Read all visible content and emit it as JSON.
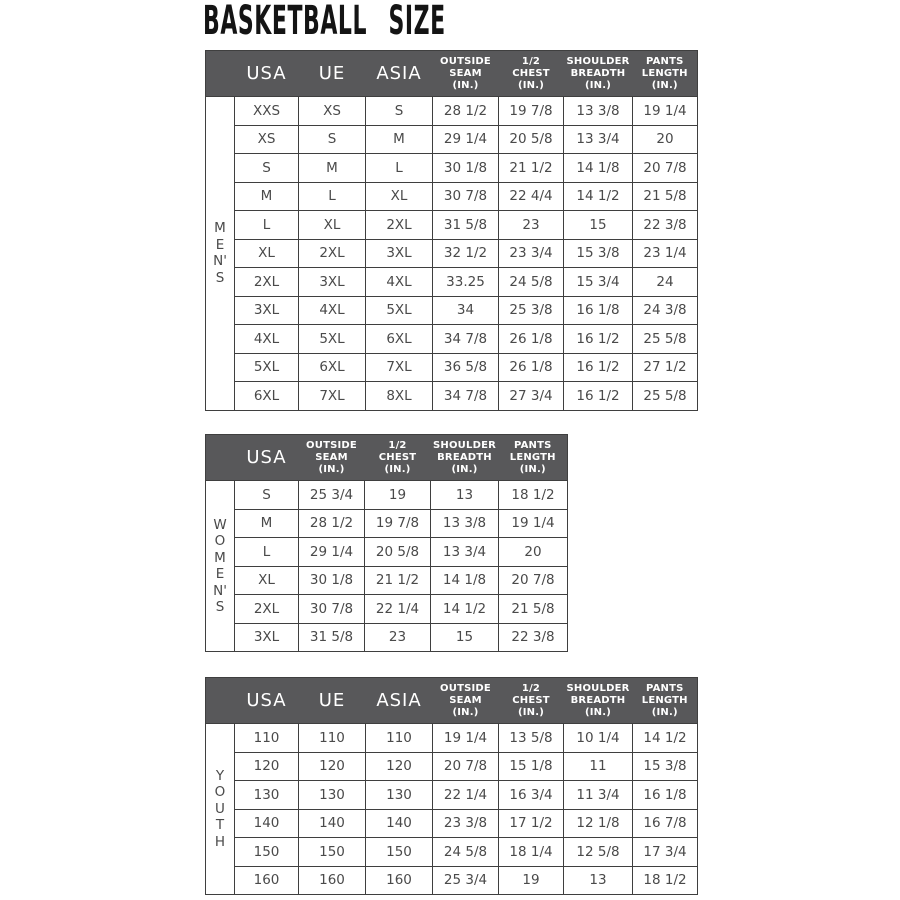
{
  "page": {
    "title": "BASKETBALL SIZE"
  },
  "colors": {
    "background": "#ffffff",
    "title_text": "#141414",
    "header_bg": "#58585a",
    "header_text": "#ffffff",
    "body_text": "#4a4a4a",
    "border": "#3f3f3f"
  },
  "tables": [
    {
      "id": "mens",
      "group_label": "MEN'S",
      "group_label_stacked": "M\nE\nN'\nS",
      "columns": [
        {
          "label": "USA",
          "style": "large"
        },
        {
          "label": "UE",
          "style": "large"
        },
        {
          "label": "ASIA",
          "style": "large"
        },
        {
          "label": "OUTSIDE\nSEAM\n(IN.)",
          "style": "small"
        },
        {
          "label": "1/2\nCHEST\n(IN.)",
          "style": "small"
        },
        {
          "label": "SHOULDER\nBREADTH\n(IN.)",
          "style": "small"
        },
        {
          "label": "PANTS\nLENGTH\n(IN.)",
          "style": "small"
        }
      ],
      "rows": [
        [
          "XXS",
          "XS",
          "S",
          "28 1/2",
          "19 7/8",
          "13 3/8",
          "19 1/4"
        ],
        [
          "XS",
          "S",
          "M",
          "29 1/4",
          "20 5/8",
          "13 3/4",
          "20"
        ],
        [
          "S",
          "M",
          "L",
          "30 1/8",
          "21 1/2",
          "14 1/8",
          "20 7/8"
        ],
        [
          "M",
          "L",
          "XL",
          "30 7/8",
          "22 4/4",
          "14 1/2",
          "21 5/8"
        ],
        [
          "L",
          "XL",
          "2XL",
          "31 5/8",
          "23",
          "15",
          "22 3/8"
        ],
        [
          "XL",
          "2XL",
          "3XL",
          "32 1/2",
          "23 3/4",
          "15 3/8",
          "23 1/4"
        ],
        [
          "2XL",
          "3XL",
          "4XL",
          "33.25",
          "24 5/8",
          "15 3/4",
          "24"
        ],
        [
          "3XL",
          "4XL",
          "5XL",
          "34",
          "25 3/8",
          "16 1/8",
          "24 3/8"
        ],
        [
          "4XL",
          "5XL",
          "6XL",
          "34 7/8",
          "26 1/8",
          "16 1/2",
          "25 5/8"
        ],
        [
          "5XL",
          "6XL",
          "7XL",
          "36 5/8",
          "26 1/8",
          "16 1/2",
          "27 1/2"
        ],
        [
          "6XL",
          "7XL",
          "8XL",
          "34 7/8",
          "27 3/4",
          "16 1/2",
          "25 5/8"
        ]
      ]
    },
    {
      "id": "womens",
      "group_label": "WOMEN'S",
      "group_label_stacked": "W\nO\nM\nE\nN'\nS",
      "columns": [
        {
          "label": "USA",
          "style": "large"
        },
        {
          "label": "OUTSIDE\nSEAM\n(IN.)",
          "style": "small"
        },
        {
          "label": "1/2\nCHEST\n(IN.)",
          "style": "small"
        },
        {
          "label": "SHOULDER\nBREADTH\n(IN.)",
          "style": "small"
        },
        {
          "label": "PANTS\nLENGTH\n(IN.)",
          "style": "small"
        }
      ],
      "rows": [
        [
          "S",
          "25 3/4",
          "19",
          "13",
          "18 1/2"
        ],
        [
          "M",
          "28 1/2",
          "19 7/8",
          "13 3/8",
          "19 1/4"
        ],
        [
          "L",
          "29 1/4",
          "20 5/8",
          "13 3/4",
          "20"
        ],
        [
          "XL",
          "30 1/8",
          "21 1/2",
          "14 1/8",
          "20 7/8"
        ],
        [
          "2XL",
          "30 7/8",
          "22 1/4",
          "14 1/2",
          "21 5/8"
        ],
        [
          "3XL",
          "31 5/8",
          "23",
          "15",
          "22 3/8"
        ]
      ]
    },
    {
      "id": "youth",
      "group_label": "YOUTH",
      "group_label_stacked": "Y\nO\nU\nT\nH",
      "columns": [
        {
          "label": "USA",
          "style": "large"
        },
        {
          "label": "UE",
          "style": "large"
        },
        {
          "label": "ASIA",
          "style": "large"
        },
        {
          "label": "OUTSIDE\nSEAM\n(IN.)",
          "style": "small"
        },
        {
          "label": "1/2\nCHEST\n(IN.)",
          "style": "small"
        },
        {
          "label": "SHOULDER\nBREADTH\n(IN.)",
          "style": "small"
        },
        {
          "label": "PANTS\nLENGTH\n(IN.)",
          "style": "small"
        }
      ],
      "rows": [
        [
          "110",
          "110",
          "110",
          "19 1/4",
          "13 5/8",
          "10 1/4",
          "14 1/2"
        ],
        [
          "120",
          "120",
          "120",
          "20 7/8",
          "15 1/8",
          "11",
          "15 3/8"
        ],
        [
          "130",
          "130",
          "130",
          "22 1/4",
          "16 3/4",
          "11 3/4",
          "16 1/8"
        ],
        [
          "140",
          "140",
          "140",
          "23 3/8",
          "17 1/2",
          "12 1/8",
          "16 7/8"
        ],
        [
          "150",
          "150",
          "150",
          "24 5/8",
          "18 1/4",
          "12 5/8",
          "17 3/4"
        ],
        [
          "160",
          "160",
          "160",
          "25 3/4",
          "19",
          "13",
          "18 1/2"
        ]
      ]
    }
  ]
}
